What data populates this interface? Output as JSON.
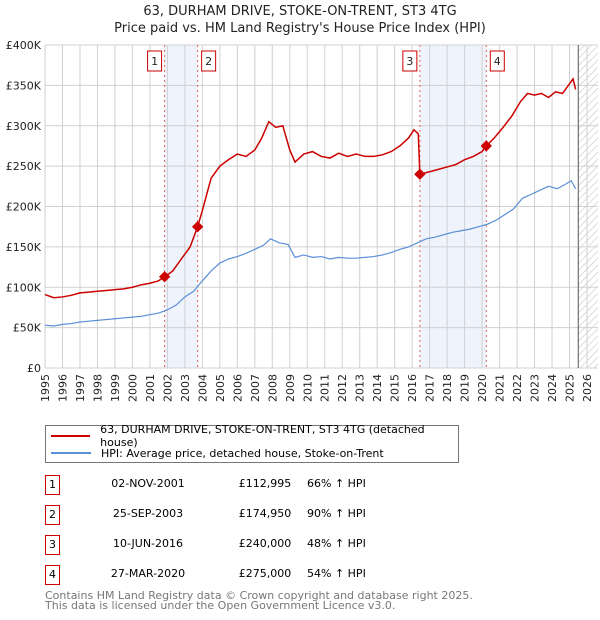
{
  "chart_data": {
    "type": "line",
    "title": "63, DURHAM DRIVE, STOKE-ON-TRENT, ST3 4TG",
    "subtitle": "Price paid vs. HM Land Registry's House Price Index (HPI)",
    "xlim": [
      1995,
      2026
    ],
    "ylim": [
      0,
      400000
    ],
    "x_ticks": [
      "1995",
      "1996",
      "1997",
      "1998",
      "1999",
      "2000",
      "2001",
      "2002",
      "2003",
      "2004",
      "2005",
      "2006",
      "2007",
      "2008",
      "2009",
      "2010",
      "2011",
      "2012",
      "2013",
      "2014",
      "2015",
      "2016",
      "2017",
      "2018",
      "2019",
      "2020",
      "2021",
      "2022",
      "2023",
      "2024",
      "2025",
      "2026"
    ],
    "y_ticks": [
      {
        "v": 0,
        "label": "£0"
      },
      {
        "v": 50000,
        "label": "£50K"
      },
      {
        "v": 100000,
        "label": "£100K"
      },
      {
        "v": 150000,
        "label": "£150K"
      },
      {
        "v": 200000,
        "label": "£200K"
      },
      {
        "v": 250000,
        "label": "£250K"
      },
      {
        "v": 300000,
        "label": "£300K"
      },
      {
        "v": 350000,
        "label": "£350K"
      },
      {
        "v": 400000,
        "label": "£400K"
      }
    ],
    "grid": true,
    "series": [
      {
        "name": "63, DURHAM DRIVE, STOKE-ON-TRENT, ST3 4TG (detached house)",
        "color": "#cc0000",
        "x": [
          1995,
          1995.5,
          1996,
          1996.5,
          1997,
          1997.5,
          1998,
          1998.5,
          1999,
          1999.5,
          2000,
          2000.5,
          2001,
          2001.5,
          2001.84,
          2002.3,
          2002.8,
          2003.3,
          2003.73,
          2004,
          2004.5,
          2005,
          2005.5,
          2006,
          2006.5,
          2007,
          2007.4,
          2007.8,
          2008.2,
          2008.6,
          2009,
          2009.3,
          2009.8,
          2010.3,
          2010.8,
          2011.3,
          2011.8,
          2012.3,
          2012.8,
          2013.3,
          2013.8,
          2014.3,
          2014.8,
          2015.3,
          2015.8,
          2016.1,
          2016.35,
          2016.44,
          2017,
          2017.5,
          2018,
          2018.5,
          2019,
          2019.5,
          2020,
          2020.24,
          2020.7,
          2021.2,
          2021.7,
          2022.2,
          2022.6,
          2023,
          2023.4,
          2023.8,
          2024.2,
          2024.6,
          2025,
          2025.2,
          2025.35
        ],
        "y": [
          91000,
          87000,
          88000,
          90000,
          93000,
          94000,
          95000,
          96000,
          97000,
          98000,
          100000,
          103000,
          105000,
          108000,
          112995,
          120000,
          135000,
          150000,
          174950,
          195000,
          235000,
          250000,
          258000,
          265000,
          262000,
          270000,
          285000,
          305000,
          298000,
          300000,
          270000,
          255000,
          265000,
          268000,
          262000,
          260000,
          266000,
          262000,
          265000,
          262000,
          262000,
          264000,
          268000,
          275000,
          285000,
          295000,
          290000,
          240000,
          243000,
          246000,
          249000,
          252000,
          258000,
          262000,
          268000,
          275000,
          285000,
          298000,
          312000,
          330000,
          340000,
          338000,
          340000,
          335000,
          342000,
          340000,
          352000,
          358000,
          345000
        ]
      },
      {
        "name": "HPI: Average price, detached house, Stoke-on-Trent",
        "color": "#5b8fd6",
        "x": [
          1995,
          1995.5,
          1996,
          1996.5,
          1997,
          1997.5,
          1998,
          1998.5,
          1999,
          1999.5,
          2000,
          2000.5,
          2001,
          2001.5,
          2002,
          2002.5,
          2003,
          2003.5,
          2004,
          2004.5,
          2005,
          2005.5,
          2006,
          2006.5,
          2007,
          2007.5,
          2007.9,
          2008.4,
          2008.9,
          2009.3,
          2009.8,
          2010.3,
          2010.8,
          2011.3,
          2011.8,
          2012.3,
          2012.8,
          2013.3,
          2013.8,
          2014.3,
          2014.8,
          2015.3,
          2015.8,
          2016.3,
          2016.8,
          2017.3,
          2017.8,
          2018.3,
          2018.8,
          2019.3,
          2019.8,
          2020.3,
          2020.8,
          2021.3,
          2021.8,
          2022.3,
          2022.8,
          2023.3,
          2023.8,
          2024.3,
          2024.8,
          2025.1,
          2025.35
        ],
        "y": [
          53000,
          52000,
          54000,
          55000,
          57000,
          58000,
          59000,
          60000,
          61000,
          62000,
          63000,
          64000,
          66000,
          68000,
          72000,
          78000,
          88000,
          95000,
          108000,
          120000,
          130000,
          135000,
          138000,
          142000,
          147000,
          152000,
          160000,
          155000,
          153000,
          137000,
          140000,
          137000,
          138000,
          135000,
          137000,
          136000,
          136000,
          137000,
          138000,
          140000,
          143000,
          147000,
          150000,
          155000,
          160000,
          162000,
          165000,
          168000,
          170000,
          172000,
          175000,
          178000,
          183000,
          190000,
          197000,
          210000,
          215000,
          220000,
          225000,
          222000,
          228000,
          232000,
          222000
        ]
      }
    ],
    "transactions": [
      {
        "num": "1",
        "x": 2001.84,
        "y": 112995,
        "date": "02-NOV-2001",
        "price": "£112,995",
        "hpi": "66% ↑ HPI"
      },
      {
        "num": "2",
        "x": 2003.73,
        "y": 174950,
        "date": "25-SEP-2003",
        "price": "£174,950",
        "hpi": "90% ↑ HPI"
      },
      {
        "num": "3",
        "x": 2016.44,
        "y": 240000,
        "date": "10-JUN-2016",
        "price": "£240,000",
        "hpi": "48% ↑ HPI"
      },
      {
        "num": "4",
        "x": 2020.24,
        "y": 275000,
        "date": "27-MAR-2020",
        "price": "£275,000",
        "hpi": "54% ↑ HPI"
      }
    ],
    "shaded_periods": [
      [
        2001.84,
        2003.73
      ],
      [
        2016.44,
        2020.24
      ]
    ],
    "forecast_start": 2025.5,
    "legend_placement": "bottom",
    "footer": [
      "Contains HM Land Registry data © Crown copyright and database right 2025.",
      "This data is licensed under the Open Government Licence v3.0."
    ]
  }
}
